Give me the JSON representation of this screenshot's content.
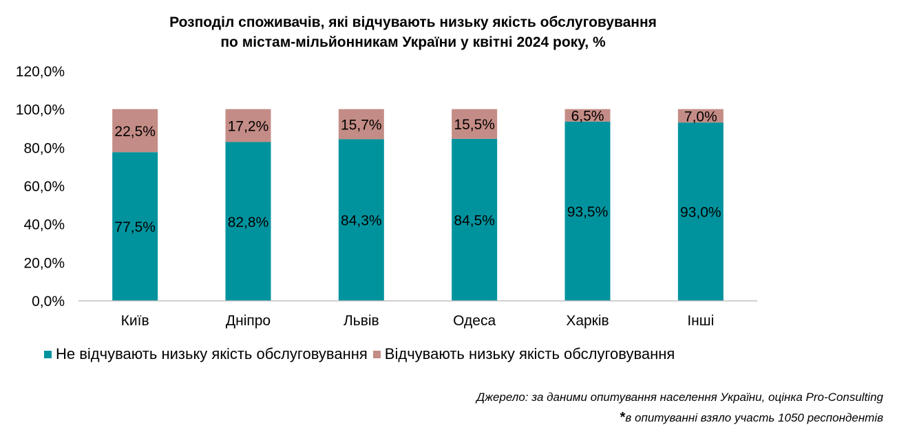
{
  "title": {
    "line1": "Розподіл споживачів, які відчувають низьку якість обслуговування",
    "line2": "по містам-мільйонникам України у квітні 2024 року, %"
  },
  "colors": {
    "not_feel": "#00939e",
    "feel": "#c48c86",
    "axis": "#bfbfbf"
  },
  "chart_data": {
    "type": "bar",
    "stacked": true,
    "title": "Розподіл споживачів, які відчувають низьку якість обслуговування по містам-мільйонникам України у квітні 2024 року, %",
    "categories": [
      "Київ",
      "Дніпро",
      "Львів",
      "Одеса",
      "Харків",
      "Інші"
    ],
    "series": [
      {
        "name": "Не відчувають низьку якість обслуговування",
        "values": [
          77.5,
          82.8,
          84.3,
          84.5,
          93.5,
          93.0
        ],
        "labels": [
          "77,5%",
          "82,8%",
          "84,3%",
          "84,5%",
          "93,5%",
          "93,0%"
        ]
      },
      {
        "name": "Відчувають низьку якість обслуговування",
        "values": [
          22.5,
          17.2,
          15.7,
          15.5,
          6.5,
          7.0
        ],
        "labels": [
          "22,5%",
          "17,2%",
          "15,7%",
          "15,5%",
          "6,5%",
          "7,0%"
        ]
      }
    ],
    "ylim": [
      0,
      120
    ],
    "yticks": [
      0,
      20,
      40,
      60,
      80,
      100,
      120
    ],
    "ytick_labels": [
      "0,0%",
      "20,0%",
      "40,0%",
      "60,0%",
      "80,0%",
      "100,0%",
      "120,0%"
    ],
    "grid": false,
    "legend_position": "bottom-left"
  },
  "footnotes": {
    "source": "Джерело: за даними опитування населення України, оцінка Pro-Consulting",
    "star": "*",
    "note": "в опитуванні взяло участь 1050 респондентів"
  }
}
